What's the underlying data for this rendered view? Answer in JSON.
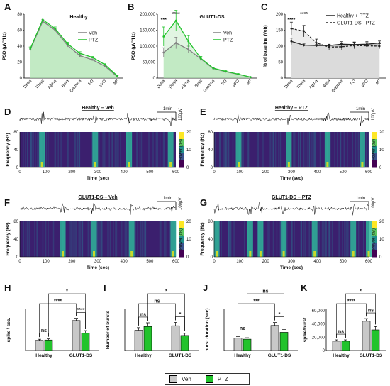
{
  "panel_labels": {
    "A": "A",
    "B": "B",
    "C": "C",
    "D": "D",
    "E": "E",
    "F": "F",
    "G": "G",
    "H": "H",
    "I": "I",
    "J": "J",
    "K": "K"
  },
  "colors": {
    "veh": "#808080",
    "ptz": "#22c32c",
    "ptz_fill": "#a9e2ac",
    "healthy_fill": "#c8c8c8"
  },
  "legend_bottom": {
    "veh": "Veh",
    "ptz": "PTZ"
  },
  "traces": [
    {
      "title": "Healthy – Veh",
      "scale_time": "1min",
      "scale_amp": "100µV",
      "xlabel": "Time (sec)",
      "ylabel": "Frequency (Hz)",
      "colorbar_label": "Power (dB)",
      "xticks": [
        "0",
        "100",
        "200",
        "300",
        "400",
        "500",
        "600"
      ],
      "yticks": [
        "0",
        "40",
        "80"
      ],
      "cbticks": [
        "20",
        "10",
        "0"
      ],
      "bursts": [
        85,
        290,
        420,
        580
      ]
    },
    {
      "title": "Healthy – PTZ",
      "scale_time": "1min",
      "scale_amp": "100µV",
      "xlabel": "Time (sec)",
      "ylabel": "Frequency (Hz)",
      "colorbar_label": "Power (dB)",
      "xticks": [
        "0",
        "100",
        "200",
        "300",
        "400",
        "500",
        "600"
      ],
      "yticks": [
        "0",
        "40",
        "80"
      ],
      "cbticks": [
        "20",
        "10",
        "0"
      ],
      "bursts": [
        95,
        290,
        440,
        575
      ]
    },
    {
      "title": "GLUT1-DS – Veh",
      "scale_time": "1min",
      "scale_amp": "100µV",
      "xlabel": "Time (sec)",
      "ylabel": "Frequency (Hz)",
      "colorbar_label": "Power (dB)",
      "xticks": [
        "0",
        "100",
        "200",
        "300",
        "400",
        "500",
        "600"
      ],
      "yticks": [
        "0",
        "40",
        "80"
      ],
      "cbticks": [
        "20",
        "10",
        "0"
      ],
      "bursts": [
        165,
        285,
        430,
        590
      ]
    },
    {
      "title": "GLUT1-DS – PTZ",
      "scale_time": "1min",
      "scale_amp": "100µV",
      "xlabel": "Time (sec)",
      "ylabel": "Frequency (Hz)",
      "colorbar_label": "Power (dB)",
      "xticks": [
        "0",
        "100",
        "200",
        "300",
        "400",
        "500",
        "600"
      ],
      "yticks": [
        "0",
        "40",
        "80"
      ],
      "cbticks": [
        "20",
        "10",
        "0"
      ],
      "bursts": [
        10,
        140,
        180,
        270,
        390,
        540,
        600
      ]
    }
  ],
  "chart_data": [
    {
      "type": "area",
      "title": "Healthy",
      "ylabel": "PSD (µV²/Hz)",
      "categories": [
        "Delta",
        "Theta",
        "Alpha",
        "Beta",
        "Gamma",
        "FO",
        "vFO",
        "AP"
      ],
      "ylim": [
        0,
        80
      ],
      "yticks": [
        "0",
        "20",
        "40",
        "60",
        "80"
      ],
      "legend": "top-right",
      "series": [
        {
          "name": "Veh",
          "values": [
            36,
            71,
            60,
            41,
            28,
            23,
            15,
            2
          ],
          "err": [
            2,
            2,
            2,
            2,
            2,
            1,
            1,
            1
          ]
        },
        {
          "name": "PTZ",
          "values": [
            37,
            73,
            62,
            43,
            31,
            26,
            17,
            3
          ],
          "err": [
            2,
            2,
            2,
            2,
            2,
            1,
            1,
            1
          ]
        }
      ]
    },
    {
      "type": "area",
      "title": "GLUT1-DS",
      "ylabel": "PSD (µV²/Hz)",
      "categories": [
        "Delta",
        "Theta",
        "Alpha",
        "Beta",
        "Gamma",
        "FO",
        "vFO",
        "AP"
      ],
      "ylim": [
        0,
        200000
      ],
      "yticks": [
        "0",
        "50,000",
        "100,000",
        "150,000",
        "200,000"
      ],
      "legend": "top-right",
      "annotations": [
        {
          "at": "Delta",
          "text": "***"
        },
        {
          "at": "Theta",
          "text": "****"
        }
      ],
      "series": [
        {
          "name": "Veh",
          "values": [
            80000,
            110000,
            90000,
            60000,
            30000,
            20000,
            12000,
            3000
          ],
          "err": [
            15000,
            18000,
            10000,
            6000,
            3000,
            2000,
            1500,
            500
          ]
        },
        {
          "name": "PTZ",
          "values": [
            130000,
            180000,
            115000,
            62000,
            31000,
            21000,
            12500,
            3000
          ],
          "err": [
            30000,
            32000,
            18000,
            6000,
            3000,
            2000,
            1500,
            500
          ]
        }
      ]
    },
    {
      "type": "line",
      "title": "",
      "ylabel": "% of baseline (Veh)",
      "categories": [
        "Delta",
        "Theta",
        "Alpha",
        "Beta",
        "Gamma",
        "FO",
        "vFO",
        "AP"
      ],
      "ylim": [
        0,
        200
      ],
      "yticks": [
        "0",
        "50",
        "100",
        "150",
        "200"
      ],
      "legend": "top-right",
      "annotations": [
        {
          "at": "Delta",
          "text": "****"
        },
        {
          "at": "Theta",
          "text": "****"
        }
      ],
      "series": [
        {
          "name": "Healthy + PTZ",
          "style": "solid",
          "values": [
            115,
            103,
            102,
            102,
            106,
            105,
            106,
            110
          ],
          "err": [
            10,
            4,
            3,
            4,
            8,
            8,
            8,
            6
          ]
        },
        {
          "name": "GLUT1-DS +PTZ",
          "style": "dashed",
          "values": [
            155,
            147,
            110,
            97,
            98,
            102,
            101,
            100
          ],
          "err": [
            20,
            18,
            12,
            8,
            10,
            10,
            10,
            8
          ]
        }
      ]
    },
    {
      "type": "bar",
      "title": "",
      "ylabel": "spike / sec.",
      "groups": [
        "Healthy",
        "GLUT1-DS"
      ],
      "series": [
        {
          "name": "Veh",
          "values": [
            27,
            80
          ],
          "err": [
            3,
            6
          ]
        },
        {
          "name": "PTZ",
          "values": [
            28,
            46
          ],
          "err": [
            3,
            7
          ]
        }
      ],
      "ylim": [
        0,
        110
      ],
      "sig": [
        {
          "type": "ns",
          "text": "ns"
        },
        {
          "type": "mid",
          "text": "****"
        },
        {
          "type": "inner",
          "text": "****"
        },
        {
          "type": "outer",
          "text": "*"
        }
      ]
    },
    {
      "type": "bar",
      "title": "",
      "ylabel": "Number of bursts",
      "groups": [
        "Healthy",
        "GLUT1-DS"
      ],
      "series": [
        {
          "name": "Veh",
          "values": [
            54,
            66
          ],
          "err": [
            7,
            9
          ]
        },
        {
          "name": "PTZ",
          "values": [
            64,
            40
          ],
          "err": [
            10,
            6
          ]
        }
      ],
      "ylim": [
        0,
        110
      ],
      "sig": [
        {
          "type": "ns",
          "text": "ns"
        },
        {
          "type": "mid",
          "text": "ns"
        },
        {
          "type": "inner",
          "text": "*"
        },
        {
          "type": "outer",
          "text": "*"
        }
      ]
    },
    {
      "type": "bar",
      "title": "",
      "ylabel": "burst duration (sec)",
      "groups": [
        "Healthy",
        "GLUT1-DS"
      ],
      "series": [
        {
          "name": "Veh",
          "values": [
            1.25,
            2.55
          ],
          "err": [
            0.15,
            0.3
          ]
        },
        {
          "name": "PTZ",
          "values": [
            1.15,
            1.85
          ],
          "err": [
            0.15,
            0.3
          ]
        }
      ],
      "ylim": [
        0,
        4.2
      ],
      "sig": [
        {
          "type": "ns",
          "text": "ns"
        },
        {
          "type": "mid",
          "text": "***"
        },
        {
          "type": "inner",
          "text": "*"
        },
        {
          "type": "outer",
          "text": "ns"
        }
      ]
    },
    {
      "type": "bar",
      "title": "",
      "ylabel": "spike/burst",
      "groups": [
        "Healthy",
        "GLUT1-DS"
      ],
      "series": [
        {
          "name": "Veh",
          "values": [
            14000,
            44000
          ],
          "err": [
            2000,
            4000
          ]
        },
        {
          "name": "PTZ",
          "values": [
            14000,
            31000
          ],
          "err": [
            2000,
            5000
          ]
        }
      ],
      "ylim": [
        0,
        62000
      ],
      "yticks": [
        "0",
        "20,000",
        "40,000",
        "60,000"
      ],
      "sig": [
        {
          "type": "ns",
          "text": "ns"
        },
        {
          "type": "mid",
          "text": "****"
        },
        {
          "type": "inner",
          "text": "ns"
        },
        {
          "type": "outer",
          "text": "*"
        }
      ]
    }
  ]
}
